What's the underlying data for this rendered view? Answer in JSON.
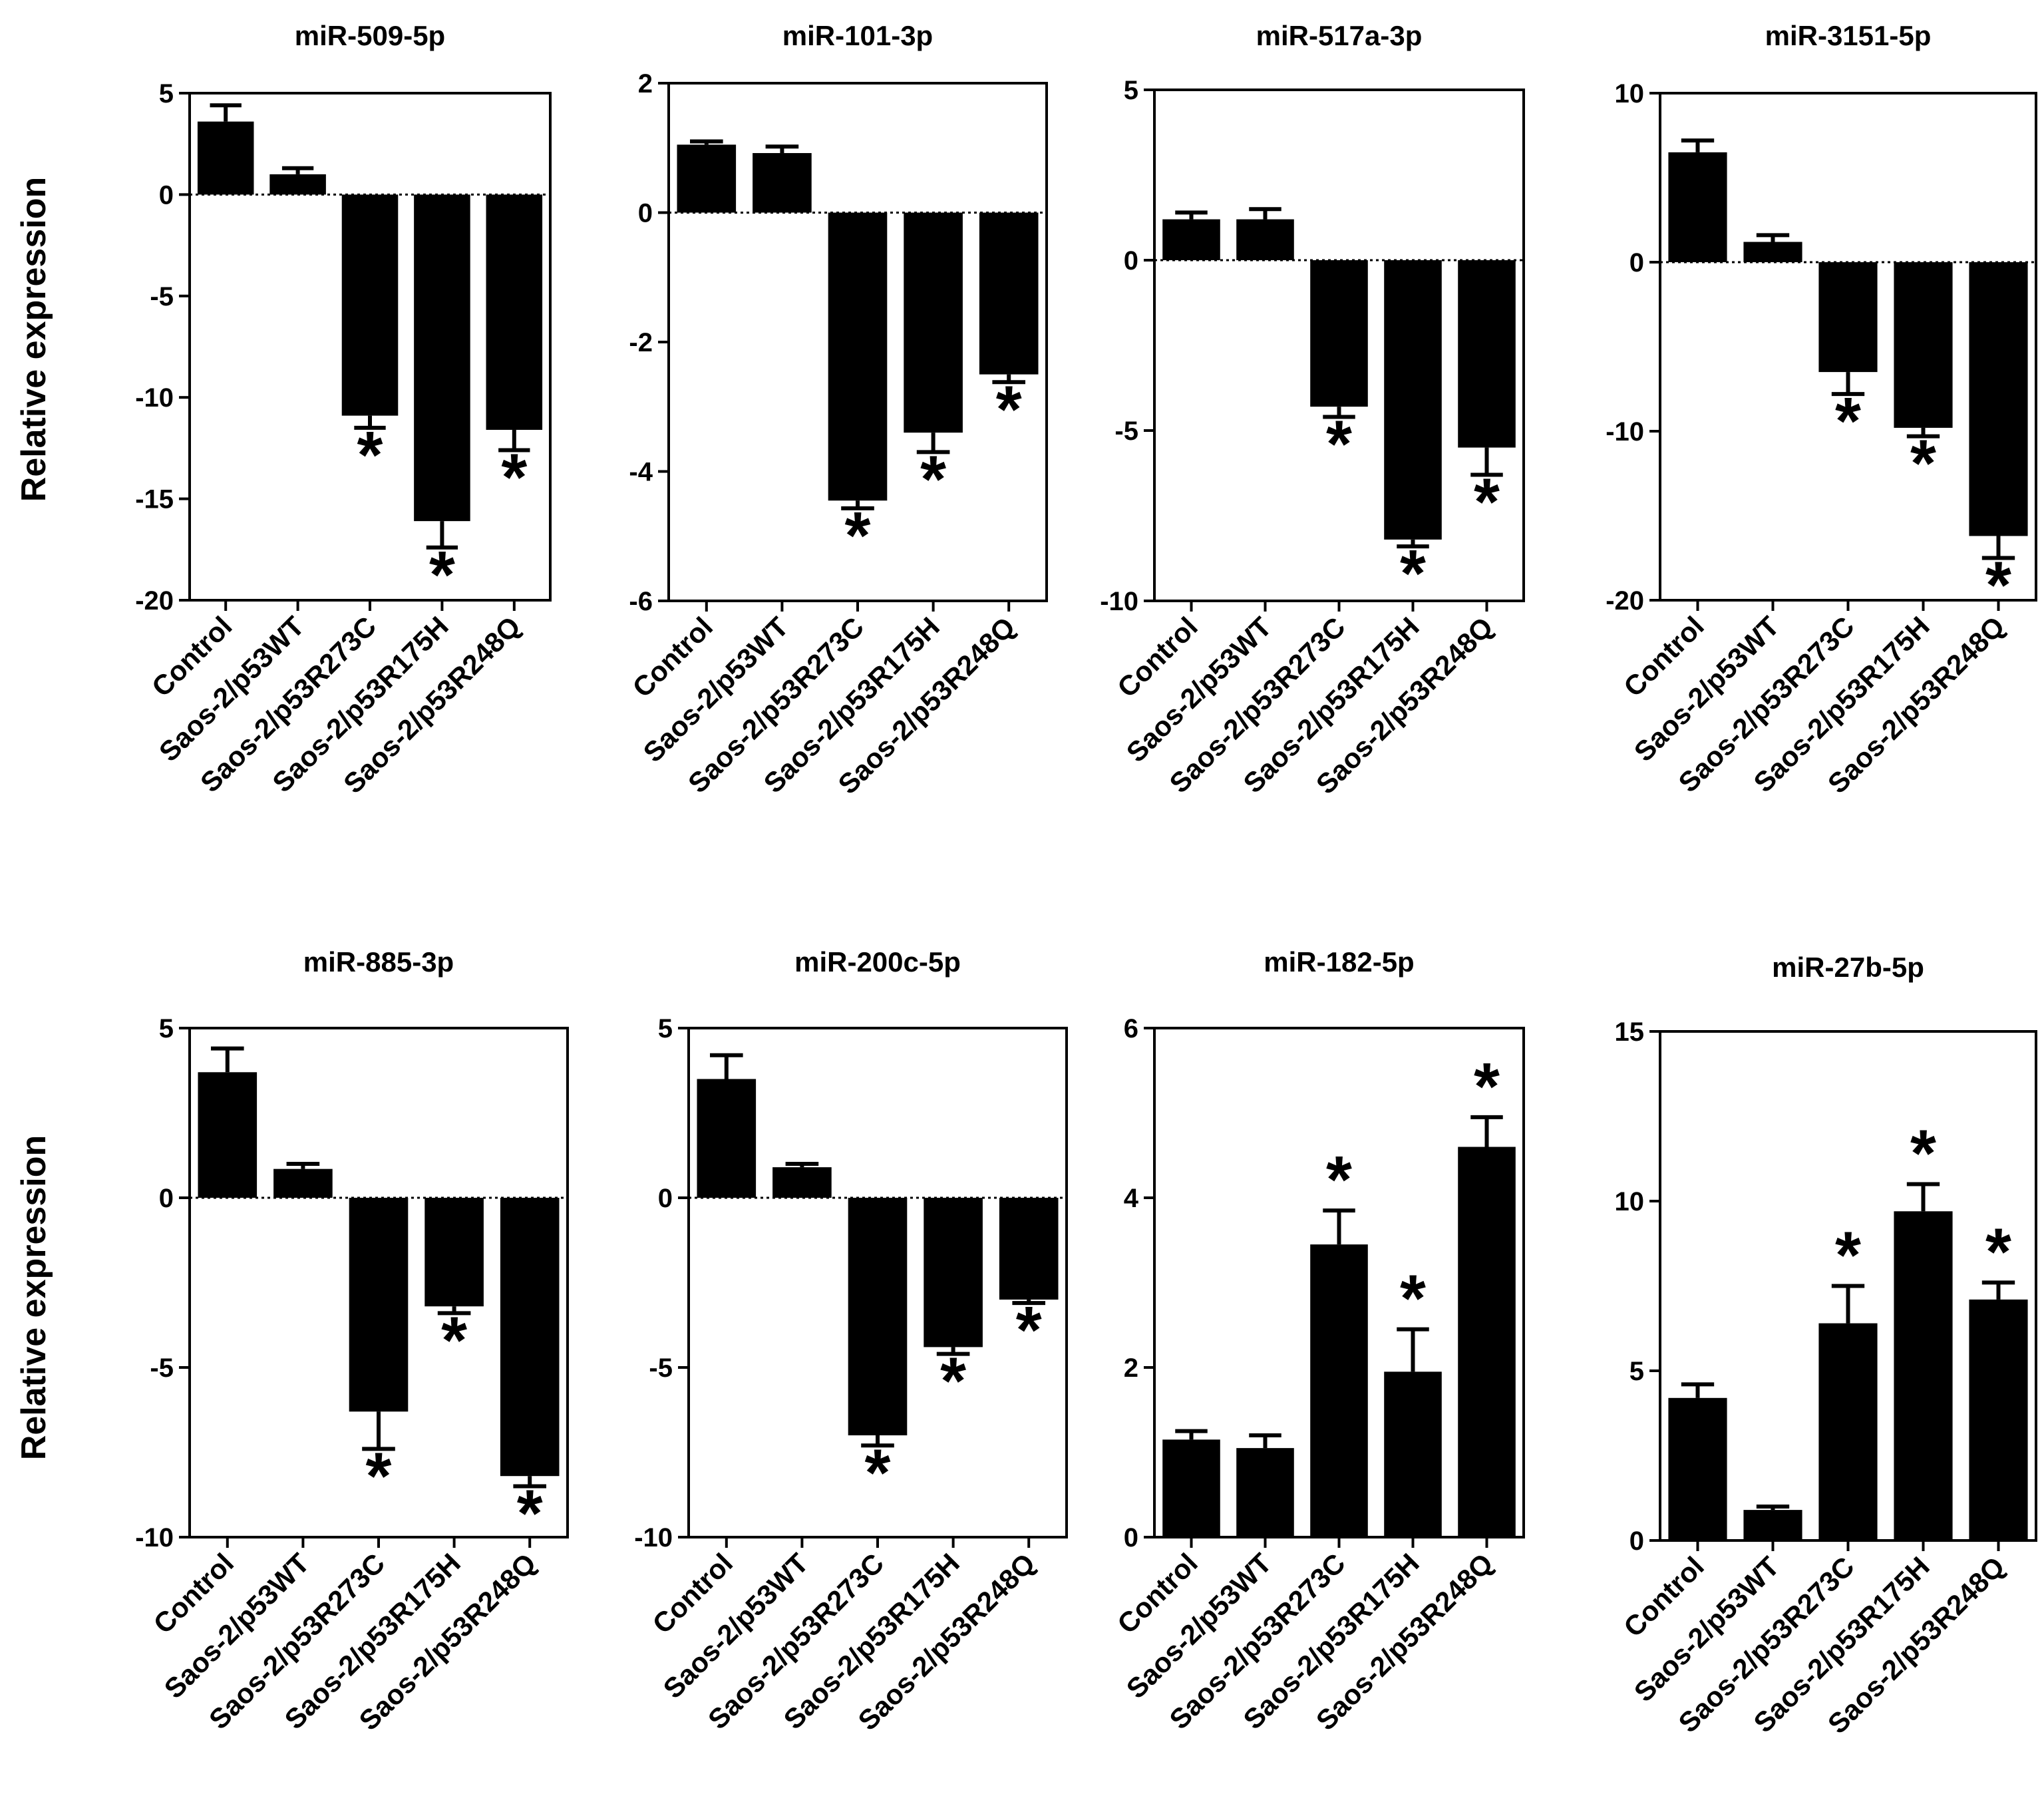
{
  "figure": {
    "ylabel_rows": [
      "Relative expression",
      "Relative expression"
    ]
  },
  "chart_data": [
    {
      "type": "bar",
      "title": "miR-509-5p",
      "ylabel": "Relative expression",
      "categories": [
        "Control",
        "Saos-2/p53WT",
        "Saos-2/p53R273C",
        "Saos-2/p53R175H",
        "Saos-2/p53R248Q"
      ],
      "values": [
        3.6,
        1.0,
        -10.9,
        -16.1,
        -11.6
      ],
      "errors": [
        0.8,
        0.3,
        0.6,
        1.3,
        1.0
      ],
      "significant": [
        false,
        false,
        true,
        true,
        true
      ],
      "ylim": [
        -20,
        5
      ],
      "yticks": [
        5,
        0,
        -5,
        -10,
        -15,
        -20
      ],
      "ytick_labels": [
        "5",
        "0",
        "-5",
        "-10",
        "-15",
        "-20"
      ]
    },
    {
      "type": "bar",
      "title": "miR-101-3p",
      "ylabel": "",
      "categories": [
        "Control",
        "Saos-2/p53WT",
        "Saos-2/p53R273C",
        "Saos-2/p53R175H",
        "Saos-2/p53R248Q"
      ],
      "values": [
        1.05,
        0.92,
        -4.45,
        -3.4,
        -2.5
      ],
      "errors": [
        0.05,
        0.1,
        0.12,
        0.3,
        0.12
      ],
      "significant": [
        false,
        false,
        true,
        true,
        true
      ],
      "ylim": [
        -6,
        2
      ],
      "yticks": [
        2,
        0,
        -2,
        -4,
        -6
      ],
      "ytick_labels": [
        "2",
        "0",
        "-2",
        "-4",
        "-6"
      ]
    },
    {
      "type": "bar",
      "title": "miR-517a-3p",
      "ylabel": "",
      "categories": [
        "Control",
        "Saos-2/p53WT",
        "Saos-2/p53R273C",
        "Saos-2/p53R175H",
        "Saos-2/p53R248Q"
      ],
      "values": [
        1.2,
        1.2,
        -4.3,
        -8.2,
        -5.5
      ],
      "errors": [
        0.2,
        0.3,
        0.3,
        0.2,
        0.8
      ],
      "significant": [
        false,
        false,
        true,
        true,
        true
      ],
      "ylim": [
        -10,
        5
      ],
      "yticks": [
        5,
        0,
        -5,
        -10
      ],
      "ytick_labels": [
        "5",
        "0",
        "-5",
        "-10"
      ]
    },
    {
      "type": "bar",
      "title": "miR-3151-5p",
      "ylabel": "",
      "categories": [
        "Control",
        "Saos-2/p53WT",
        "Saos-2/p53R273C",
        "Saos-2/p53R175H",
        "Saos-2/p53R248Q"
      ],
      "values": [
        6.5,
        1.2,
        -6.5,
        -9.8,
        -16.2
      ],
      "errors": [
        0.7,
        0.4,
        1.3,
        0.5,
        1.3
      ],
      "significant": [
        false,
        false,
        true,
        true,
        true
      ],
      "ylim": [
        -20,
        10
      ],
      "yticks": [
        10,
        0,
        -10,
        -20
      ],
      "ytick_labels": [
        "10",
        "0",
        "-10",
        "-20"
      ]
    },
    {
      "type": "bar",
      "title": "miR-885-3p",
      "ylabel": "Relative expression",
      "categories": [
        "Control",
        "Saos-2/p53WT",
        "Saos-2/p53R273C",
        "Saos-2/p53R175H",
        "Saos-2/p53R248Q"
      ],
      "values": [
        3.7,
        0.85,
        -6.3,
        -3.2,
        -8.2
      ],
      "errors": [
        0.7,
        0.15,
        1.1,
        0.2,
        0.3
      ],
      "significant": [
        false,
        false,
        true,
        true,
        true
      ],
      "ylim": [
        -10,
        5
      ],
      "yticks": [
        5,
        0,
        -5,
        -10
      ],
      "ytick_labels": [
        "5",
        "0",
        "-5",
        "-10"
      ]
    },
    {
      "type": "bar",
      "title": "miR-200c-5p",
      "ylabel": "",
      "categories": [
        "Control",
        "Saos-2/p53WT",
        "Saos-2/p53R273C",
        "Saos-2/p53R175H",
        "Saos-2/p53R248Q"
      ],
      "values": [
        3.5,
        0.9,
        -7.0,
        -4.4,
        -3.0
      ],
      "errors": [
        0.7,
        0.1,
        0.3,
        0.2,
        0.1
      ],
      "significant": [
        false,
        false,
        true,
        true,
        true
      ],
      "ylim": [
        -10,
        5
      ],
      "yticks": [
        5,
        0,
        -5,
        -10
      ],
      "ytick_labels": [
        "5",
        "0",
        "-5",
        "-10"
      ]
    },
    {
      "type": "bar",
      "title": "miR-182-5p",
      "ylabel": "",
      "categories": [
        "Control",
        "Saos-2/p53WT",
        "Saos-2/p53R273C",
        "Saos-2/p53R175H",
        "Saos-2/p53R248Q"
      ],
      "values": [
        1.15,
        1.05,
        3.45,
        1.95,
        4.6
      ],
      "errors": [
        0.1,
        0.15,
        0.4,
        0.5,
        0.35
      ],
      "significant": [
        false,
        false,
        true,
        true,
        true
      ],
      "ylim": [
        0,
        6
      ],
      "yticks": [
        6,
        4,
        2,
        0
      ],
      "ytick_labels": [
        "6",
        "4",
        "2",
        "0"
      ]
    },
    {
      "type": "bar",
      "title": "miR-27b-5p",
      "ylabel": "",
      "categories": [
        "Control",
        "Saos-2/p53WT",
        "Saos-2/p53R273C",
        "Saos-2/p53R175H",
        "Saos-2/p53R248Q"
      ],
      "values": [
        4.2,
        0.9,
        6.4,
        9.7,
        7.1
      ],
      "errors": [
        0.4,
        0.1,
        1.1,
        0.8,
        0.5
      ],
      "significant": [
        false,
        false,
        true,
        true,
        true
      ],
      "ylim": [
        0,
        15
      ],
      "yticks": [
        15,
        10,
        5,
        0
      ],
      "ytick_labels": [
        "15",
        "10",
        "5",
        "0"
      ]
    }
  ]
}
